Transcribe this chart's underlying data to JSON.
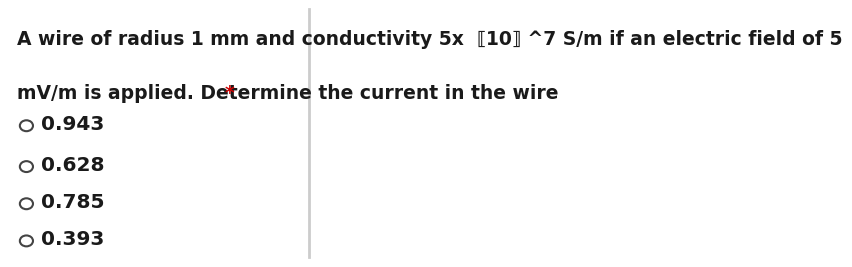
{
  "background_color": "#ffffff",
  "question_line1": "A wire of radius 1 mm and conductivity 5x  ⟦10⟧ ^7 S/m if an electric field of 5",
  "question_line2": "mV/m is applied. Determine the current in the wire ",
  "asterisk": "*",
  "options": [
    "0.943",
    "0.628",
    "0.785",
    "0.393"
  ],
  "text_color": "#1a1a1a",
  "asterisk_color": "#cc0000",
  "font_size_question": 13.5,
  "font_size_options": 14.5,
  "circle_color": "#444444",
  "fig_width": 6.45,
  "fig_height": 2.56
}
